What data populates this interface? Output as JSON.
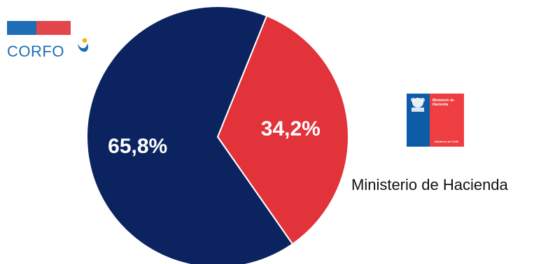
{
  "colors": {
    "navy": "#0b2460",
    "red": "#e2323a",
    "corfo_blue": "#1f6db4",
    "corfo_red": "#e3454d",
    "ministerio_blue": "#0d5ca8",
    "ministerio_red": "#ef3e42"
  },
  "corfo_logo": {
    "wordmark": "CORFO"
  },
  "ministerio_logo": {
    "top_text": "Ministerio de Hacienda",
    "bottom_text": "Gobierno de Chile"
  },
  "ministerio_caption": "Ministerio de Hacienda",
  "chart_data": {
    "type": "pie",
    "title": "",
    "legend": "none",
    "slices": [
      {
        "label": "65,8%",
        "value": 65.8,
        "color": "#0b2460"
      },
      {
        "label": "34,2%",
        "value": 34.2,
        "color": "#e2323a"
      }
    ]
  }
}
